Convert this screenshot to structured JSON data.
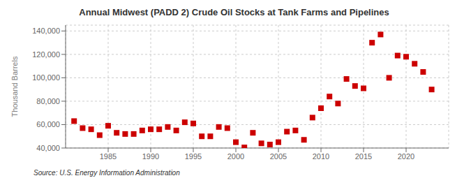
{
  "chart_data": {
    "type": "scatter",
    "title": "Annual Midwest (PADD 2) Crude Oil Stocks at Tank Farms and Pipelines",
    "y_label": "Thousand Barrels",
    "annotation": "Source: U.S. Energy Information Administration",
    "color": "#CC0000",
    "marker": "square",
    "grid": true,
    "x": [
      1981,
      1982,
      1983,
      1984,
      1985,
      1986,
      1987,
      1988,
      1989,
      1990,
      1991,
      1992,
      1993,
      1994,
      1995,
      1996,
      1997,
      1998,
      1999,
      2000,
      2001,
      2002,
      2003,
      2004,
      2005,
      2006,
      2007,
      2008,
      2009,
      2010,
      2011,
      2012,
      2013,
      2014,
      2015,
      2016,
      2017,
      2018,
      2019,
      2020,
      2021,
      2022,
      2023
    ],
    "values": [
      63000,
      57000,
      56000,
      51000,
      59000,
      53000,
      52000,
      52000,
      55000,
      56000,
      56000,
      58000,
      55000,
      62000,
      61000,
      50000,
      50000,
      58000,
      57000,
      45000,
      40500,
      53000,
      44000,
      43000,
      45000,
      54000,
      55000,
      47000,
      66000,
      74000,
      84000,
      78000,
      99000,
      93000,
      91000,
      130000,
      137000,
      100000,
      119000,
      118000,
      112000,
      105000,
      90000
    ],
    "xlim": [
      1980,
      2025
    ],
    "xticks": [
      1985,
      1990,
      1995,
      2000,
      2005,
      2010,
      2015,
      2020
    ],
    "ylim": [
      40000,
      145000
    ],
    "yticks": [
      {
        "value": 40000,
        "label": "40,000"
      },
      {
        "value": 60000,
        "label": "60,000"
      },
      {
        "value": 80000,
        "label": "80,000"
      },
      {
        "value": 100000,
        "label": "100,000"
      },
      {
        "value": 120000,
        "label": "120,000"
      },
      {
        "value": 140000,
        "label": "140,000"
      }
    ]
  }
}
